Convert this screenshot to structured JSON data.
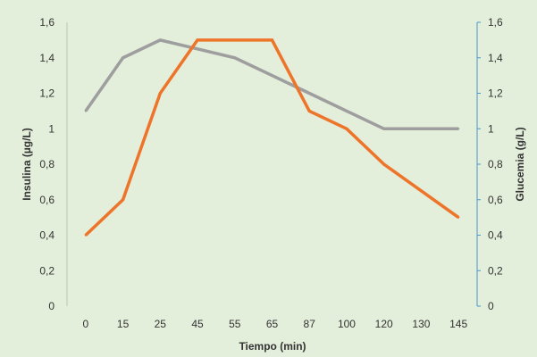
{
  "chart_data": {
    "type": "line",
    "title": "",
    "xlabel": "Tiempo (min)",
    "ylabel_left": "Insulina (µg/L)",
    "ylabel_right": "Glucemia (g/L)",
    "categories": [
      "0",
      "15",
      "25",
      "45",
      "55",
      "65",
      "87",
      "100",
      "120",
      "130",
      "145"
    ],
    "y_ticks": [
      "0",
      "0,2",
      "0,4",
      "0,6",
      "0,8",
      "1",
      "1,2",
      "1,4",
      "1,6"
    ],
    "ylim": [
      0,
      1.6
    ],
    "grid": false,
    "legend": "none",
    "series": [
      {
        "axis": "right",
        "color": "#9e9e9e",
        "values": [
          1.1,
          1.4,
          1.5,
          1.45,
          1.4,
          1.3,
          1.2,
          1.1,
          1.0,
          1.0,
          1.0
        ]
      },
      {
        "axis": "left",
        "color": "#ed7428",
        "values": [
          0.4,
          0.6,
          1.2,
          1.5,
          1.5,
          1.5,
          1.1,
          1.0,
          0.8,
          0.65,
          0.5
        ]
      }
    ],
    "colors": {
      "left_axis": "#b8cbb0",
      "right_axis": "#4b97c9",
      "background": "#e3eedb"
    }
  }
}
